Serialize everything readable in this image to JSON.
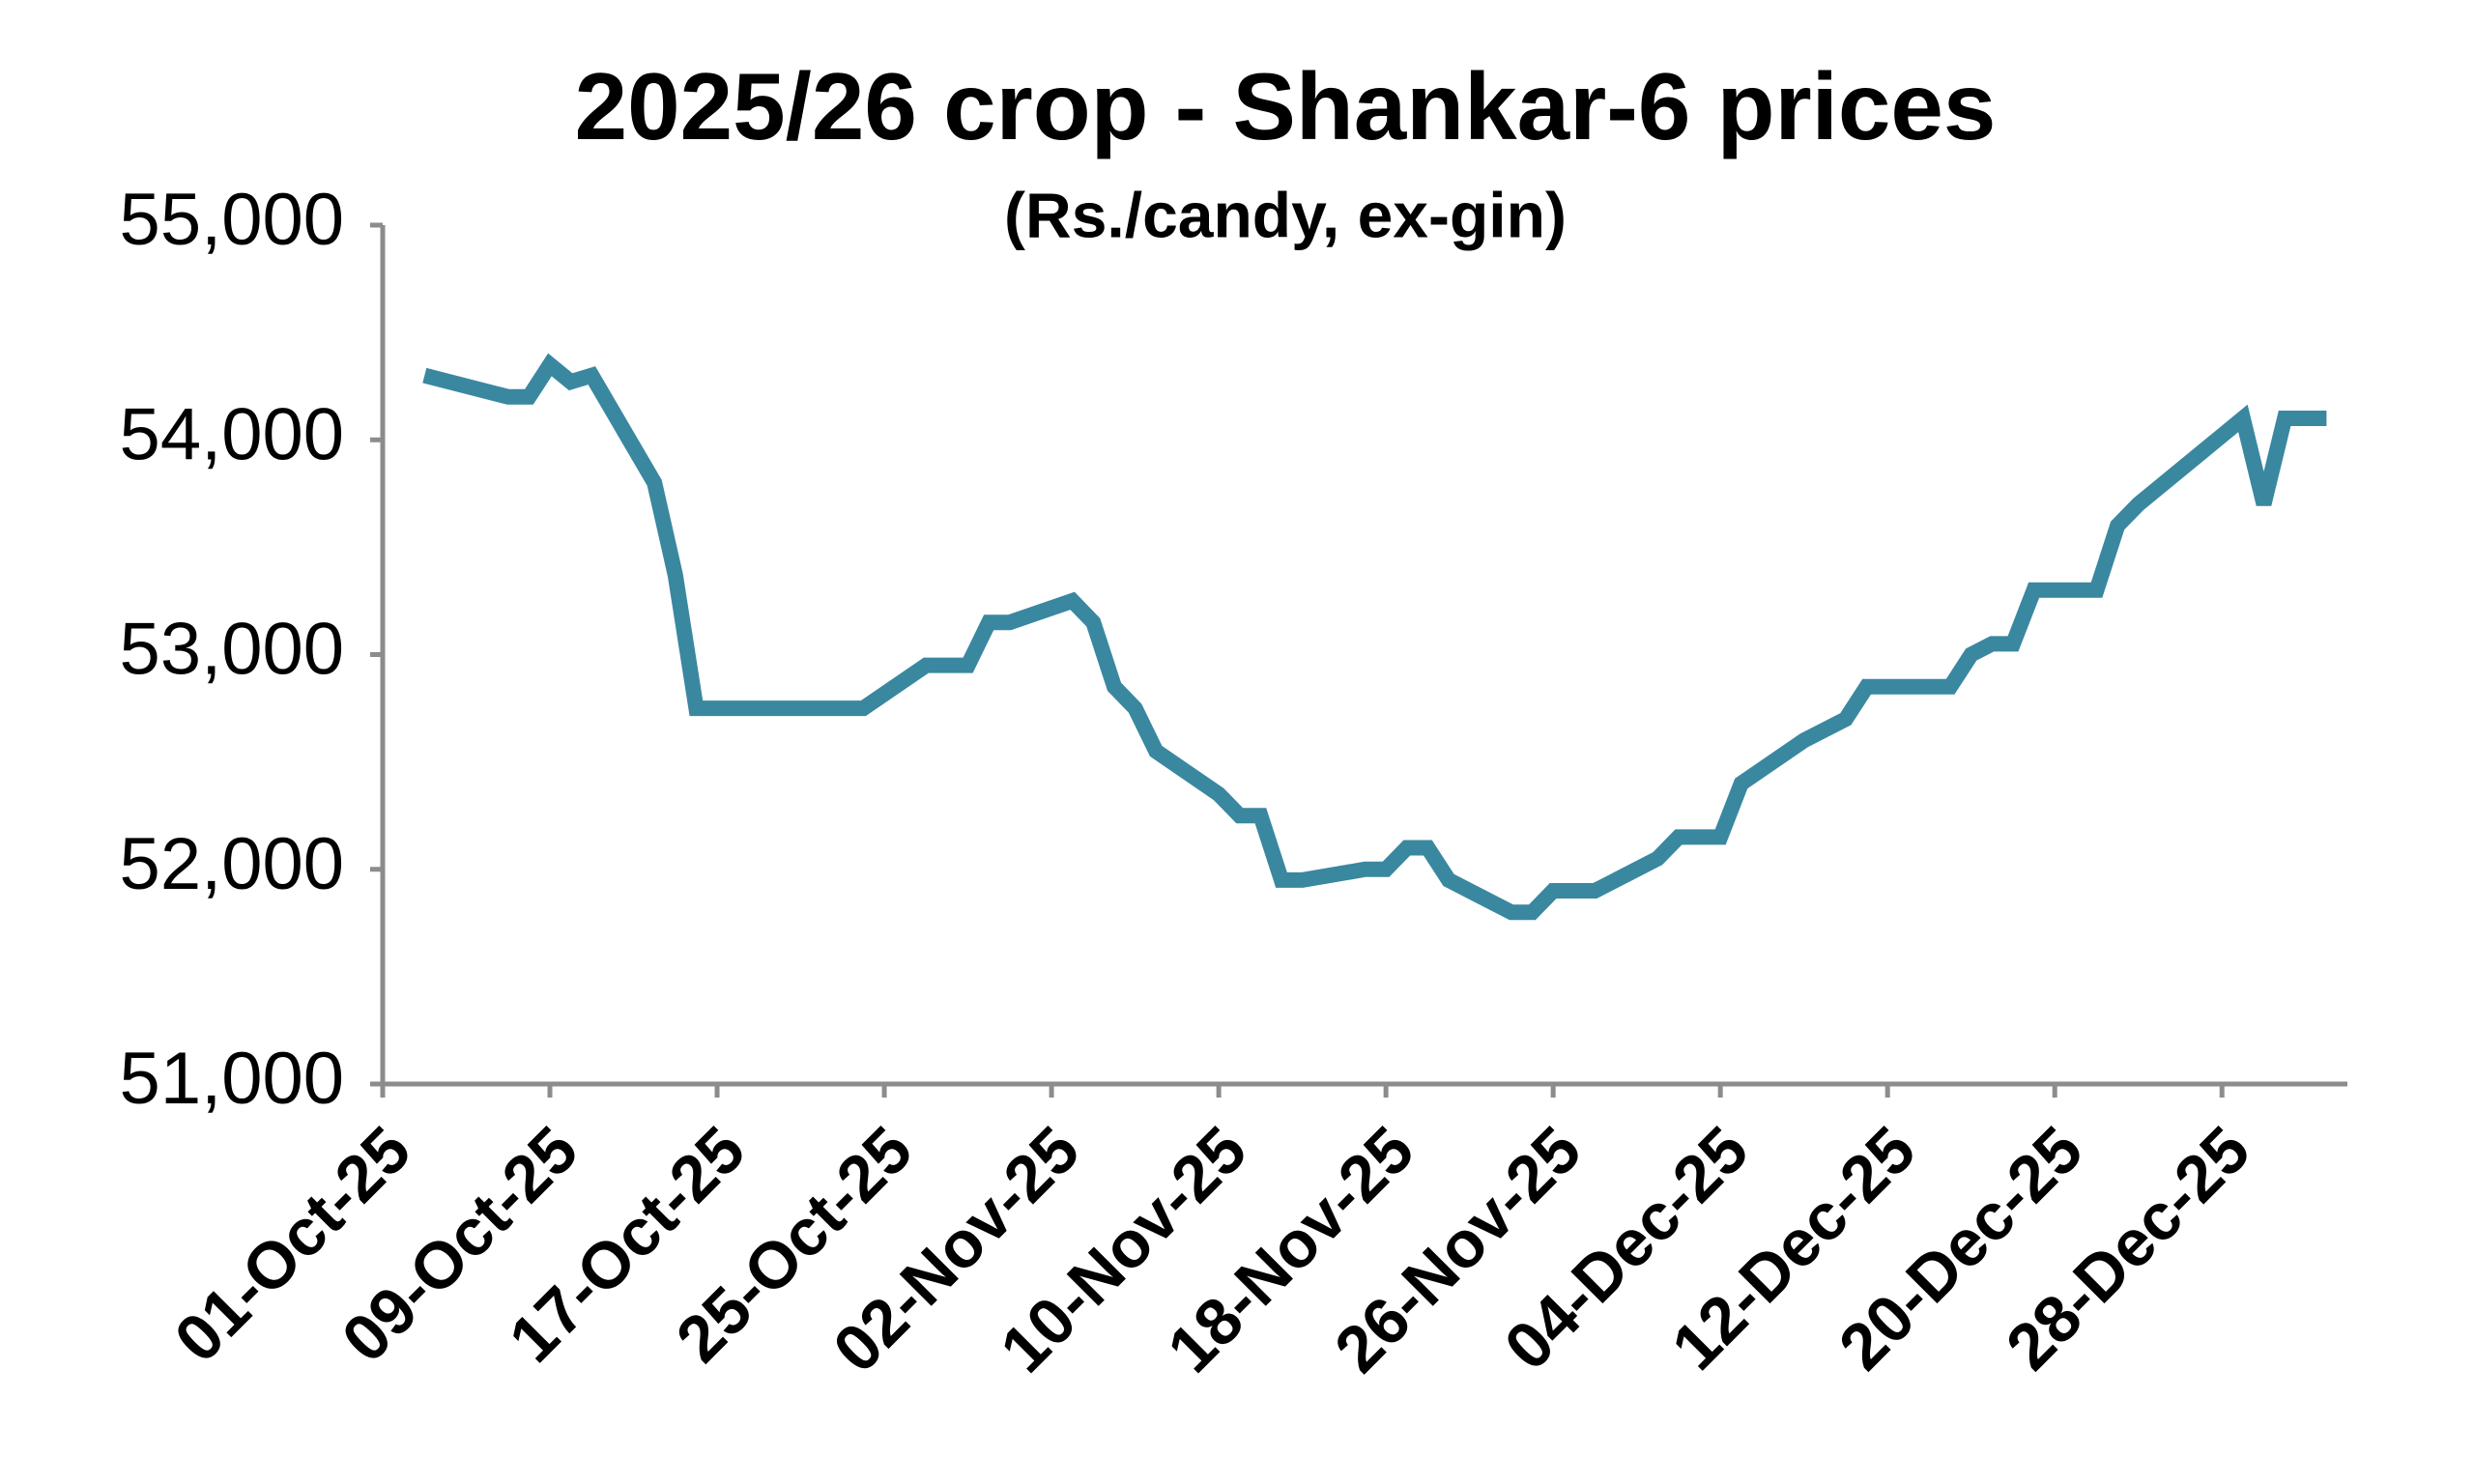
{
  "chart_data": {
    "type": "line",
    "title": "2025/26 crop - Shankar-6 prices",
    "subtitle": "(Rs./candy, ex-gin)",
    "x": [
      "2025-10-03",
      "2025-10-07",
      "2025-10-08",
      "2025-10-09",
      "2025-10-10",
      "2025-10-11",
      "2025-10-14",
      "2025-10-15",
      "2025-10-16",
      "2025-10-24",
      "2025-10-27",
      "2025-10-29",
      "2025-10-30",
      "2025-10-31",
      "2025-11-03",
      "2025-11-04",
      "2025-11-05",
      "2025-11-06",
      "2025-11-07",
      "2025-11-10",
      "2025-11-11",
      "2025-11-12",
      "2025-11-13",
      "2025-11-14",
      "2025-11-17",
      "2025-11-18",
      "2025-11-19",
      "2025-11-20",
      "2025-11-21",
      "2025-11-24",
      "2025-11-25",
      "2025-11-26",
      "2025-11-28",
      "2025-12-01",
      "2025-12-02",
      "2025-12-04",
      "2025-12-05",
      "2025-12-08",
      "2025-12-10",
      "2025-12-11",
      "2025-12-15",
      "2025-12-16",
      "2025-12-17",
      "2025-12-18",
      "2025-12-19",
      "2025-12-22",
      "2025-12-23",
      "2025-12-24",
      "2025-12-29",
      "2025-12-30",
      "2025-12-31",
      "2026-01-02"
    ],
    "series": [
      {
        "name": "Shankar-6",
        "color": "#3a87a0",
        "values": [
          54300,
          54200,
          54200,
          54350,
          54270,
          54300,
          53800,
          53370,
          52750,
          52750,
          52950,
          52950,
          53150,
          53150,
          53250,
          53150,
          52850,
          52750,
          52550,
          52350,
          52250,
          52250,
          51950,
          51950,
          52000,
          52000,
          52100,
          52100,
          51950,
          51800,
          51800,
          51900,
          51900,
          52050,
          52150,
          52150,
          52400,
          52600,
          52700,
          52850,
          52850,
          53000,
          53050,
          53050,
          53300,
          53300,
          53600,
          53700,
          54100,
          53700,
          54100,
          54100
        ]
      }
    ],
    "xlim": [
      "2025-10-01",
      "2026-01-03"
    ],
    "xticks": [
      {
        "value": "2025-10-01",
        "label": "01-Oct-25"
      },
      {
        "value": "2025-10-09",
        "label": "09-Oct-25"
      },
      {
        "value": "2025-10-17",
        "label": "17-Oct-25"
      },
      {
        "value": "2025-10-25",
        "label": "25-Oct-25"
      },
      {
        "value": "2025-11-02",
        "label": "02-Nov-25"
      },
      {
        "value": "2025-11-10",
        "label": "10-Nov-25"
      },
      {
        "value": "2025-11-18",
        "label": "18-Nov-25"
      },
      {
        "value": "2025-11-26",
        "label": "26-Nov-25"
      },
      {
        "value": "2025-12-04",
        "label": "04-Dec-25"
      },
      {
        "value": "2025-12-12",
        "label": "12-Dec-25"
      },
      {
        "value": "2025-12-20",
        "label": "20-Dec-25"
      },
      {
        "value": "2025-12-28",
        "label": "28-Dec-25"
      }
    ],
    "ylim": [
      51000,
      55000
    ],
    "yticks": [
      {
        "value": 51000,
        "label": "51,000"
      },
      {
        "value": 52000,
        "label": "52,000"
      },
      {
        "value": 53000,
        "label": "53,000"
      },
      {
        "value": 54000,
        "label": "54,000"
      },
      {
        "value": 55000,
        "label": "55,000"
      }
    ],
    "grid": false
  }
}
